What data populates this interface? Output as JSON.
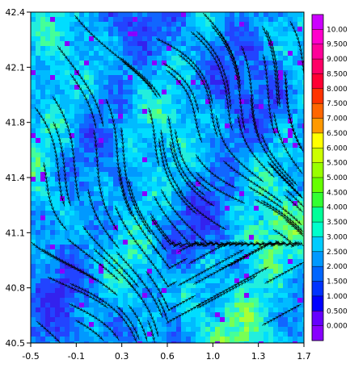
{
  "chart_data": {
    "type": "heatmap",
    "title": "",
    "xlabel": "",
    "ylabel": "",
    "xlim": [
      -0.5,
      1.7
    ],
    "ylim": [
      40.5,
      42.4
    ],
    "x_ticks": [
      "-0.5",
      "-0.1",
      "0.3",
      "0.6",
      "1.0",
      "1.3",
      "1.7"
    ],
    "y_ticks": [
      "42.4",
      "42.1",
      "41.8",
      "41.4",
      "41.1",
      "40.8",
      "40.5"
    ],
    "overlay": "streamlines",
    "colorbar": {
      "position": "right",
      "levels": [
        "10.00",
        "9.500",
        "9.000",
        "8.500",
        "8.000",
        "7.500",
        "7.000",
        "6.500",
        "6.000",
        "5.500",
        "5.000",
        "4.500",
        "4.000",
        "3.500",
        "3.000",
        "2.500",
        "2.000",
        "1.500",
        "1.000",
        "0.500",
        "0.000"
      ],
      "colors": [
        "#cc00ff",
        "#ff00cc",
        "#ff0099",
        "#ff0066",
        "#ff0033",
        "#ff3300",
        "#ff6600",
        "#ff9900",
        "#ffff00",
        "#ccff00",
        "#99ff00",
        "#66ff00",
        "#33ff33",
        "#00ff99",
        "#00ffcc",
        "#00ccff",
        "#0099ff",
        "#0066ff",
        "#0033ff",
        "#0000ff",
        "#6600ff",
        "#8800ff"
      ]
    }
  }
}
